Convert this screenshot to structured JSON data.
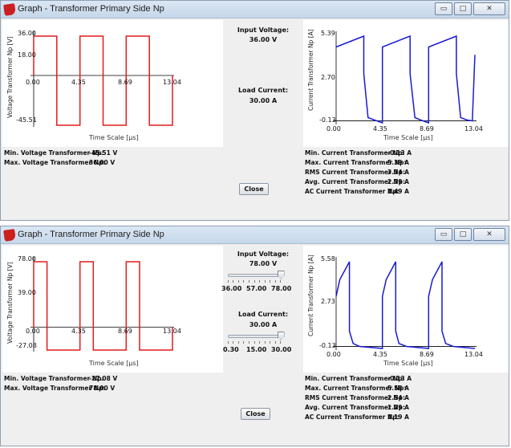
{
  "colors": {
    "voltage_line": "#e21b1b",
    "current_line": "#1a1ad6",
    "axis": "#000000"
  },
  "icons": {
    "app": "texas-instruments-logo-icon",
    "minimize": "minimize-icon",
    "maximize": "maximize-icon",
    "close": "close-icon"
  },
  "window_controls": {
    "minimize": "▭",
    "maximize": "□",
    "close": "✕"
  },
  "windows": [
    {
      "title": "Graph - Transformer Primary Side Np",
      "voltage_chart": {
        "ylabel": "Voltage Transformer Np [V]",
        "xlabel": "Time Scale  [µs]",
        "ytick_labels": [
          "36.00",
          "18.00",
          "0.00",
          "-45.51"
        ],
        "xtick_labels": [
          "4.35",
          "8.69",
          "13.04"
        ]
      },
      "current_chart": {
        "ylabel": "Current Transformer Np [A]",
        "xlabel": "Time Scale  [µs]",
        "ytick_labels": [
          "5.39",
          "2.70",
          "-0.13"
        ],
        "xtick_labels": [
          "0.00",
          "4.35",
          "8.69",
          "13.04"
        ]
      },
      "center": {
        "input_voltage_label": "Input Voltage:",
        "input_voltage_value": "36.00  V",
        "load_current_label": "Load Current:",
        "load_current_value": "30.00  A"
      },
      "left_stats": [
        {
          "label": "Min. Voltage Transformer Np:",
          "value": "-45.51  V"
        },
        {
          "label": "Max. Voltage Transformer Np:",
          "value": "36.00  V"
        }
      ],
      "right_stats": [
        {
          "label": "Min. Current Transformer Np:",
          "value": "-0.13  A"
        },
        {
          "label": "Max. Current Transformer Np:",
          "value": "5.39  A"
        },
        {
          "label": "RMS Current Transformer Np:",
          "value": "3.74  A"
        },
        {
          "label": "Avg. Current Transformer Np:",
          "value": "2.79  A"
        },
        {
          "label": "AC Current Transformer Np:",
          "value": "2.49  A"
        }
      ],
      "close_label": "Close"
    },
    {
      "title": "Graph - Transformer Primary Side Np",
      "voltage_chart": {
        "ylabel": "Voltage Transformer Np [V]",
        "xlabel": "Time Scale  [µs]",
        "ytick_labels": [
          "78.00",
          "39.00",
          "0.00",
          "-27.08"
        ],
        "xtick_labels": [
          "4.35",
          "8.69",
          "13.04"
        ]
      },
      "current_chart": {
        "ylabel": "Current Transformer Np [A]",
        "xlabel": "Time Scale  [µs]",
        "ytick_labels": [
          "5.58",
          "2.73",
          "-0.13"
        ],
        "xtick_labels": [
          "0.00",
          "4.35",
          "8.69",
          "13.04"
        ]
      },
      "center": {
        "input_voltage_label": "Input Voltage:",
        "input_voltage_value": "78.00  V",
        "voltage_slider": {
          "tick_labels": [
            "36.00",
            "57.00",
            "78.00"
          ],
          "min": 36,
          "max": 78,
          "value": 78
        },
        "load_current_label": "Load Current:",
        "load_current_value": "30.00  A",
        "current_slider": {
          "tick_labels": [
            "0.30",
            "15.00",
            "30.00"
          ],
          "min": 0.3,
          "max": 30,
          "value": 30
        }
      },
      "left_stats": [
        {
          "label": "Min. Voltage Transformer Np:",
          "value": "-27.08  V"
        },
        {
          "label": "Max. Voltage Transformer Np:",
          "value": "78.00  V"
        }
      ],
      "right_stats": [
        {
          "label": "Min. Current Transformer Np:",
          "value": "-0.13  A"
        },
        {
          "label": "Max. Current Transformer Np:",
          "value": "5.58  A"
        },
        {
          "label": "RMS Current Transformer Np:",
          "value": "2.54  A"
        },
        {
          "label": "Avg. Current Transformer Np:",
          "value": "1.29  A"
        },
        {
          "label": "AC Current Transformer Np:",
          "value": "2.19  A"
        }
      ],
      "close_label": "Close"
    }
  ],
  "chart_data": [
    {
      "type": "line",
      "ylabel": "Voltage Transformer Np [V]",
      "xlabel": "Time Scale  [µs]",
      "ylim": [
        -45.51,
        36.0
      ],
      "xlim": [
        0,
        13.04
      ],
      "x": [
        0,
        0,
        2.17,
        2.17,
        4.35,
        4.35,
        6.52,
        6.52,
        8.69,
        8.69,
        10.87,
        10.87,
        13.04,
        13.04
      ],
      "y": [
        0,
        36.0,
        36.0,
        -45.51,
        -45.51,
        36.0,
        36.0,
        -45.51,
        -45.51,
        36.0,
        36.0,
        -45.51,
        -45.51,
        0
      ]
    },
    {
      "type": "line",
      "ylabel": "Current Transformer Np [A]",
      "xlabel": "Time Scale  [µs]",
      "ylim": [
        -0.13,
        5.39
      ],
      "xlim": [
        0,
        13.04
      ],
      "x": [
        0,
        2.6,
        2.6,
        3.0,
        3.6,
        4.35,
        4.35,
        6.95,
        6.95,
        7.4,
        7.95,
        8.69,
        8.69,
        11.3,
        11.3,
        11.7,
        12.3,
        12.8,
        13.04
      ],
      "y": [
        4.7,
        5.39,
        3.0,
        0.2,
        0.05,
        -0.13,
        4.7,
        5.39,
        3.0,
        0.2,
        0.05,
        -0.13,
        4.7,
        5.39,
        3.0,
        0.2,
        0.05,
        0.0,
        4.2
      ]
    },
    {
      "type": "line",
      "ylabel": "Voltage Transformer Np [V]",
      "xlabel": "Time Scale  [µs]",
      "ylim": [
        -27.08,
        78.0
      ],
      "xlim": [
        0,
        13.04
      ],
      "x": [
        0,
        0,
        1.25,
        1.25,
        4.35,
        4.35,
        5.6,
        5.6,
        8.69,
        8.69,
        9.95,
        9.95,
        13.04,
        13.04
      ],
      "y": [
        0,
        78.0,
        78.0,
        -27.08,
        -27.08,
        78.0,
        78.0,
        -27.08,
        -27.08,
        78.0,
        78.0,
        -27.08,
        -27.08,
        0
      ]
    },
    {
      "type": "line",
      "ylabel": "Current Transformer Np [A]",
      "xlabel": "Time Scale  [µs]",
      "ylim": [
        -0.13,
        5.58
      ],
      "xlim": [
        0,
        13.04
      ],
      "x": [
        0,
        0.35,
        1.25,
        1.25,
        1.6,
        2.2,
        4.35,
        4.35,
        4.7,
        5.6,
        5.6,
        5.9,
        6.6,
        8.69,
        8.69,
        9.05,
        9.95,
        9.95,
        10.3,
        11.0,
        13.04
      ],
      "y": [
        3.3,
        4.4,
        5.58,
        1.0,
        0.2,
        0.0,
        -0.13,
        3.3,
        4.4,
        5.58,
        1.0,
        0.2,
        0.0,
        -0.13,
        3.3,
        4.4,
        5.58,
        1.0,
        0.2,
        0.0,
        -0.13
      ]
    }
  ]
}
